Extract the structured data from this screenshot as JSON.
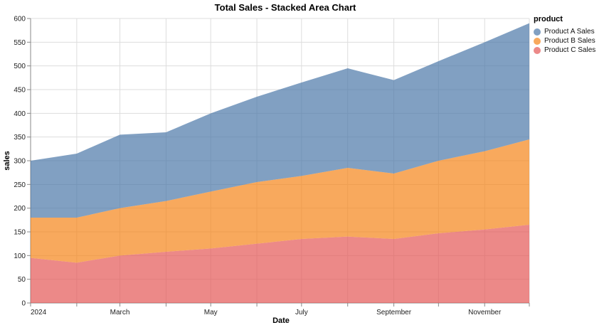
{
  "chart_data": {
    "type": "area",
    "stacked": true,
    "title": "Total Sales - Stacked Area Chart",
    "xlabel": "Date",
    "ylabel": "sales",
    "legend": {
      "title": "product",
      "position": "right"
    },
    "x_months": [
      "2024-01",
      "2024-02",
      "2024-03",
      "2024-04",
      "2024-05",
      "2024-06",
      "2024-07",
      "2024-08",
      "2024-09",
      "2024-10",
      "2024-11",
      "2024-12"
    ],
    "x_days": [
      0,
      31,
      60,
      91,
      121,
      152,
      182,
      213,
      244,
      274,
      305,
      335
    ],
    "x_domain_days": 335,
    "x_tick_labels": [
      "2024",
      "",
      "March",
      "",
      "May",
      "",
      "July",
      "",
      "September",
      "",
      "November",
      ""
    ],
    "ylim": [
      0,
      600
    ],
    "y_ticks": [
      0,
      50,
      100,
      150,
      200,
      250,
      300,
      350,
      400,
      450,
      500,
      550,
      600
    ],
    "grid": true,
    "series": [
      {
        "name": "Product A Sales",
        "color": "#4c78a8",
        "values": [
          120,
          135,
          155,
          145,
          165,
          180,
          197,
          210,
          197,
          210,
          230,
          245
        ]
      },
      {
        "name": "Product B Sales",
        "color": "#f58518",
        "values": [
          85,
          95,
          100,
          107,
          120,
          130,
          133,
          145,
          138,
          153,
          165,
          180
        ]
      },
      {
        "name": "Product C Sales",
        "color": "#e45756",
        "values": [
          95,
          85,
          100,
          108,
          115,
          125,
          135,
          140,
          135,
          147,
          155,
          165
        ]
      }
    ],
    "stack_order_bottom_to_top": [
      "Product C Sales",
      "Product B Sales",
      "Product A Sales"
    ],
    "stacked_totals": [
      300,
      315,
      355,
      360,
      400,
      435,
      465,
      495,
      470,
      510,
      550,
      590
    ],
    "fill_opacity": 0.7,
    "grid_color": "#dddddd",
    "axis_color": "#888888",
    "label_color": "#222222"
  }
}
